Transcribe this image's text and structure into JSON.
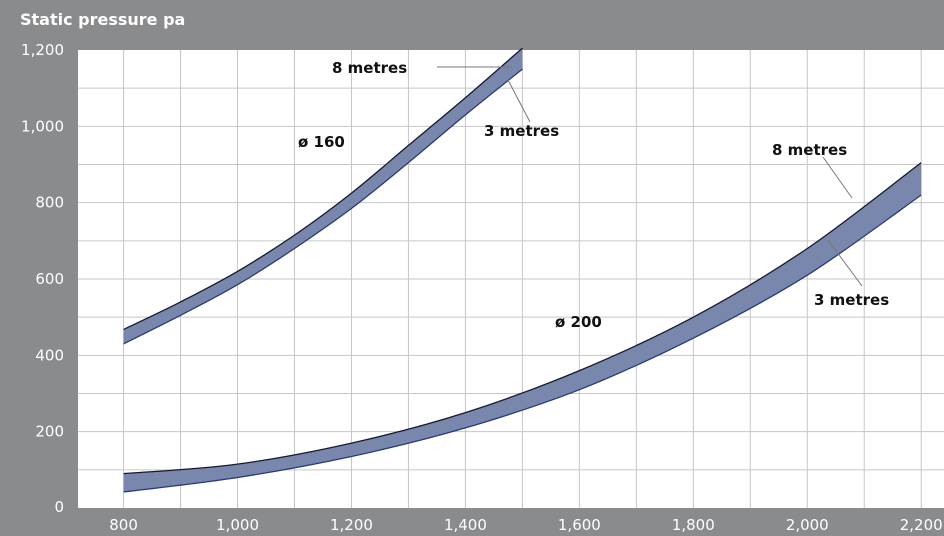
{
  "chart_data": {
    "type": "area",
    "title": "Static pressure pa",
    "xlabel": "",
    "ylabel": "",
    "xlim": [
      720,
      2240
    ],
    "ylim": [
      0,
      1200
    ],
    "x_ticks": [
      800,
      1000,
      1200,
      1400,
      1600,
      1800,
      2000,
      2200
    ],
    "x_tick_labels": [
      "800",
      "1,000",
      "1,200",
      "1,400",
      "1,600",
      "1,800",
      "2,000",
      "2,200"
    ],
    "y_ticks": [
      0,
      200,
      400,
      600,
      800,
      1000,
      1200
    ],
    "y_tick_labels": [
      "0",
      "200",
      "400",
      "600",
      "800",
      "1,000",
      "1,200"
    ],
    "grid": true,
    "band_color": "#7a87ad",
    "series": [
      {
        "name": "ø 160",
        "upper_label": "8 metres",
        "lower_label": "3 metres",
        "x": [
          800,
          900,
          1000,
          1100,
          1200,
          1300,
          1400,
          1500
        ],
        "upper": [
          468,
          540,
          620,
          715,
          825,
          950,
          1075,
          1205
        ],
        "lower": [
          430,
          505,
          585,
          680,
          785,
          905,
          1030,
          1150
        ]
      },
      {
        "name": "ø 200",
        "upper_label": "8 metres",
        "lower_label": "3 metres",
        "x": [
          800,
          1000,
          1200,
          1400,
          1600,
          1800,
          2000,
          2200
        ],
        "upper": [
          90,
          115,
          170,
          250,
          360,
          500,
          680,
          905
        ],
        "lower": [
          42,
          80,
          135,
          210,
          310,
          445,
          610,
          820
        ]
      }
    ]
  }
}
